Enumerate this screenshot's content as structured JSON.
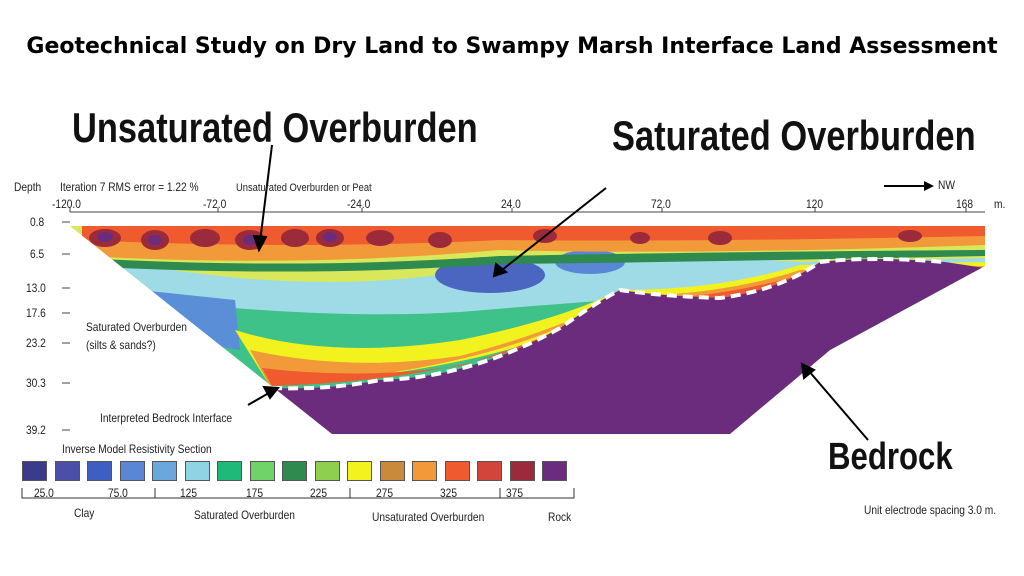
{
  "title": "Geotechnical Study on Dry Land to Swampy Marsh Interface Land Assessment",
  "callouts": {
    "unsaturated": "Unsaturated Overburden",
    "saturated": "Saturated Overburden",
    "bedrock": "Bedrock"
  },
  "section": {
    "depth_label": "Depth",
    "iteration_text": "Iteration 7 RMS error = 1.22 %",
    "top_note": "Unsaturated Overburden or Peat",
    "direction": "NW",
    "x_unit": "m.",
    "x_ticks": [
      "-120.0",
      "-72.0",
      "-24.0",
      "24.0",
      "72.0",
      "120",
      "168"
    ],
    "depth_ticks": [
      "0.8",
      "6.5",
      "13.0",
      "17.6",
      "23.2",
      "30.3",
      "39.2"
    ],
    "inner_labels": {
      "saturated_line1": "Saturated Overburden",
      "saturated_line2": "(silts & sands?)",
      "bedrock_interface": "Interpreted Bedrock Interface"
    }
  },
  "legend": {
    "title": "Inverse Model Resistivity Section",
    "colors": [
      "#3b3b8c",
      "#4b4fa8",
      "#3d5fc4",
      "#5a86d6",
      "#6aa7dc",
      "#8fd3e4",
      "#1fb97a",
      "#6fd36a",
      "#2e8a4e",
      "#8fcf4f",
      "#f2f21e",
      "#c98a3c",
      "#f29a3a",
      "#ef5a2e",
      "#d1453a",
      "#9b2a3a",
      "#6b2c7e"
    ],
    "values": [
      "25.0",
      "75.0",
      "125",
      "175",
      "225",
      "275",
      "325",
      "375"
    ],
    "groups": [
      "Clay",
      "Saturated Overburden",
      "Unsaturated Overburden",
      "Rock"
    ]
  },
  "footer_note": "Unit electrode spacing 3.0 m."
}
